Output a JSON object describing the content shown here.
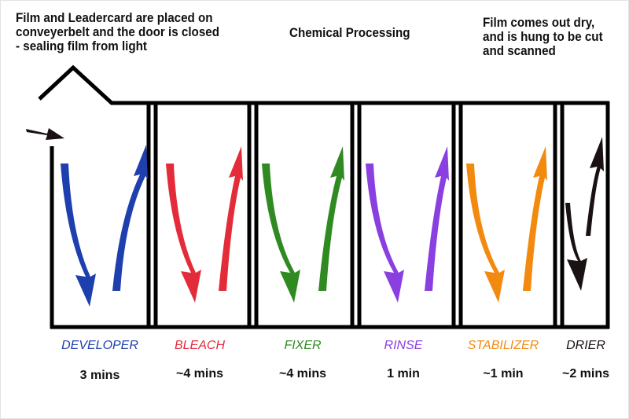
{
  "captions": {
    "loading": "Film and Leadercard are placed on\nconveyerbelt and the door is closed\n- sealing film from light",
    "processing": "Chemical Processing",
    "output": "Film comes out dry,\nand is hung to be cut\nand scanned"
  },
  "stages": [
    {
      "name": "DEVELOPER",
      "time": "3 mins",
      "color": "#1e3fae"
    },
    {
      "name": "BLEACH",
      "time": "~4 mins",
      "color": "#e32b3a"
    },
    {
      "name": "FIXER",
      "time": "~4 mins",
      "color": "#2f8a22"
    },
    {
      "name": "RINSE",
      "time": "1 min",
      "color": "#8a3fe0"
    },
    {
      "name": "STABILIZER",
      "time": "~1 min",
      "color": "#f28a10"
    },
    {
      "name": "DRIER",
      "time": "~2 mins",
      "color": "#1a1212"
    }
  ],
  "icons": {
    "entry": "entry-arrow-icon",
    "down": "down-arrow-icon",
    "up": "up-arrow-icon"
  }
}
